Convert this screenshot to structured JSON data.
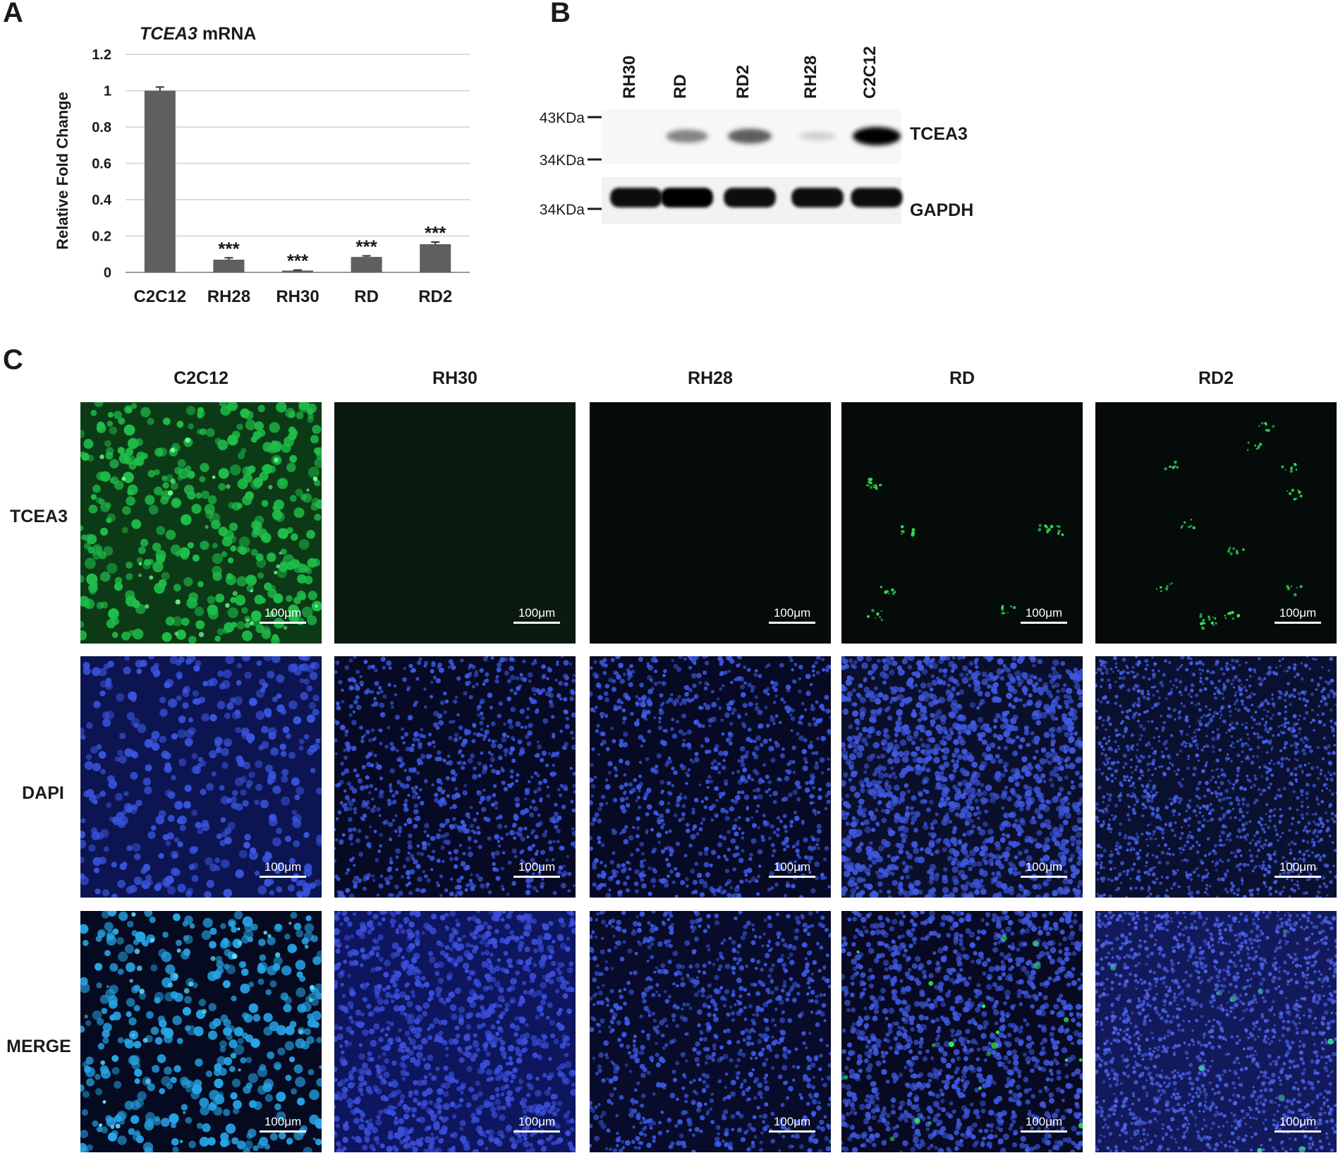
{
  "panelA": {
    "letter": "A",
    "chart_data": {
      "type": "bar",
      "title_italic": "TCEA3",
      "title_rest": " mRNA",
      "ylabel": "Relative Fold Change",
      "ylim": [
        0,
        1.2
      ],
      "yticks": [
        "0",
        "0.2",
        "0.4",
        "0.6",
        "0.8",
        "1",
        "1.2"
      ],
      "categories": [
        "C2C12",
        "RH28",
        "RH30",
        "RD",
        "RD2"
      ],
      "values": [
        1.0,
        0.07,
        0.01,
        0.085,
        0.155
      ],
      "errors": [
        0.02,
        0.01,
        0.003,
        0.006,
        0.012
      ],
      "annotations": [
        "",
        "***",
        "***",
        "***",
        "***"
      ],
      "bar_color": "#5f5f5f",
      "grid": true
    }
  },
  "panelB": {
    "letter": "B",
    "lanes": [
      "RH30",
      "RD",
      "RD2",
      "RH28",
      "C2C12"
    ],
    "markers_top": [
      "43KDa",
      "34KDa"
    ],
    "markers_bottom": [
      "34KDa"
    ],
    "blots": [
      {
        "label": "TCEA3",
        "intensities": [
          0.0,
          0.55,
          0.7,
          0.15,
          1.0
        ]
      },
      {
        "label": "GAPDH",
        "intensities": [
          0.95,
          1.0,
          0.95,
          0.95,
          0.9
        ]
      }
    ]
  },
  "panelC": {
    "letter": "C",
    "columns": [
      "C2C12",
      "RH30",
      "RH28",
      "RD",
      "RD2"
    ],
    "rows": [
      "TCEA3",
      "DAPI",
      "MERGE"
    ],
    "scale_label": "100μm"
  }
}
